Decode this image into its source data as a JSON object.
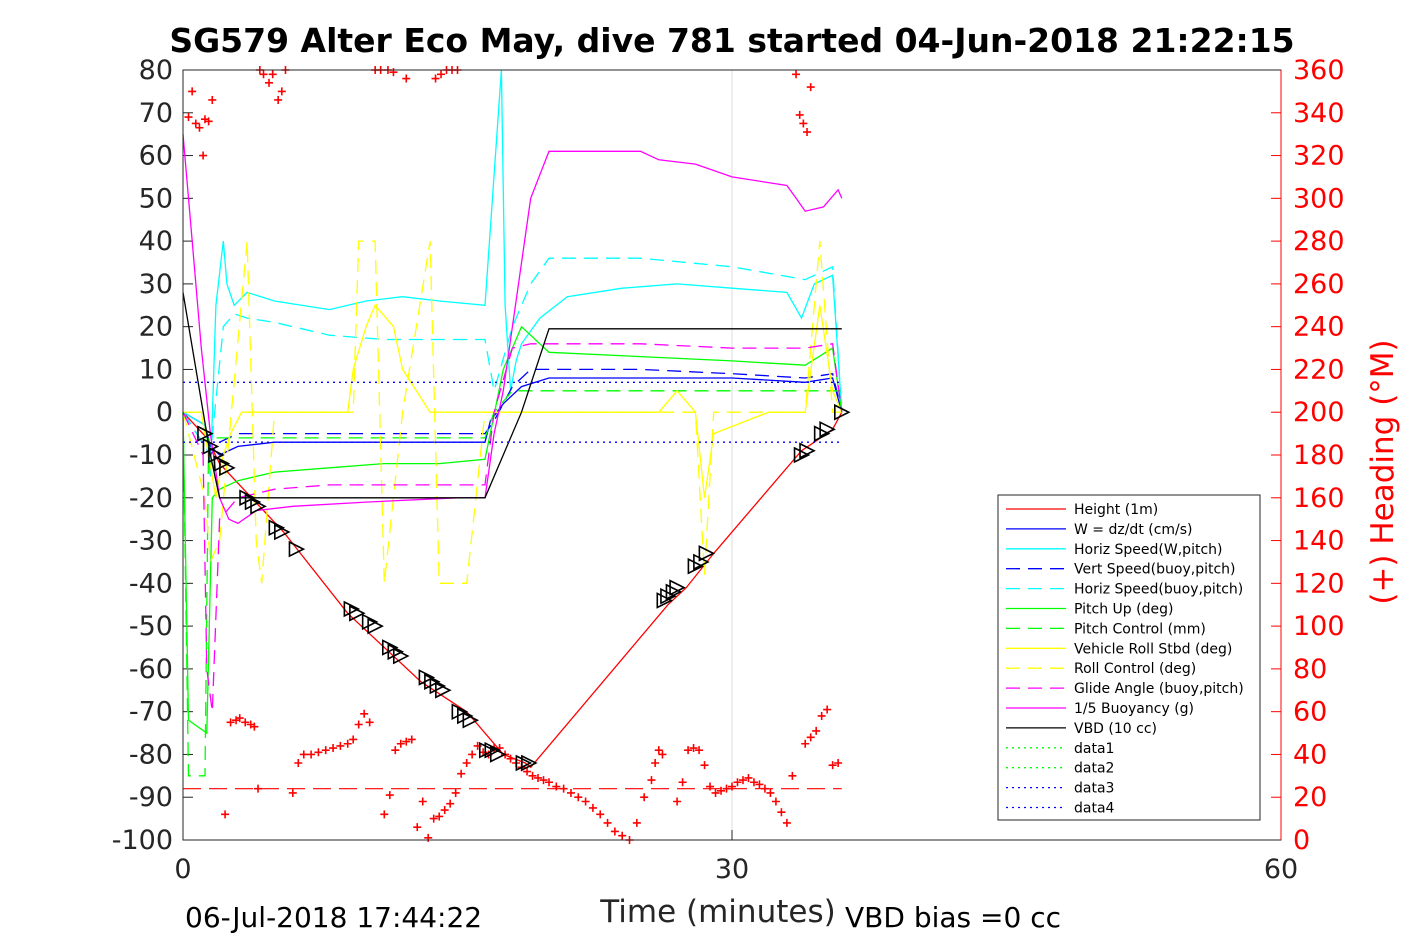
{
  "chart_data": {
    "type": "line",
    "title": "SG579 Alter Eco May, dive 781 started 04-Jun-2018 21:22:15",
    "xlabel": "Time (minutes)",
    "ylabel_right": "(+) Heading (°M)",
    "xlim": [
      0,
      60
    ],
    "ylim": [
      -100,
      80
    ],
    "ylim_right": [
      0,
      360
    ],
    "xticks": [
      "0",
      "30",
      "60"
    ],
    "yticks_left": [
      "80",
      "70",
      "60",
      "50",
      "40",
      "30",
      "20",
      "10",
      "0",
      "-10",
      "-20",
      "-30",
      "-40",
      "-50",
      "-60",
      "-70",
      "-80",
      "-90",
      "-100"
    ],
    "yticks_right": [
      "360",
      "340",
      "320",
      "300",
      "280",
      "260",
      "240",
      "220",
      "200",
      "180",
      "160",
      "140",
      "120",
      "100",
      "80",
      "60",
      "40",
      "20",
      "0"
    ],
    "grid": "x at 30 only",
    "legend_position": "lower-right",
    "footer_left": "06-Jul-2018 17:44:22",
    "footer_right": "VBD bias =0 cc",
    "colors": {
      "height": "#ff0000",
      "w": "#0000ff",
      "horiz_speed": "#00ffff",
      "pitch": "#00ff00",
      "roll": "#ffff00",
      "glide": "#ff00ff",
      "buoyancy": "#ff00ff",
      "vbd": "#000000",
      "data_green": "#00ff00",
      "data_blue": "#0000ff"
    },
    "series": [
      {
        "name": "Height (1m)",
        "color": "#ff0000",
        "dash": "",
        "x": [
          0,
          1.3,
          2.0,
          5.5,
          9,
          13,
          15.5,
          17.5,
          18.7,
          19.0,
          26.5,
          27.5,
          29,
          33.8,
          34.5,
          35.5,
          36
        ],
        "y": [
          0,
          -6,
          -12,
          -28,
          -47,
          -63,
          -70,
          -80,
          -82,
          -83,
          -45,
          -41,
          -33,
          -9,
          -7,
          -4,
          0
        ]
      },
      {
        "name": "W = dz/dt (cm/s)",
        "color": "#0000ff",
        "dash": "",
        "x": [
          0,
          1.2,
          1.5,
          2,
          3,
          5,
          8,
          11,
          14,
          16.5,
          16.8,
          17.5,
          18.5,
          20,
          25,
          30,
          34,
          35.5,
          36
        ],
        "y": [
          0,
          -3,
          -8,
          -10,
          -8,
          -7,
          -7,
          -7,
          -7,
          -7,
          -2,
          2,
          6,
          8,
          8,
          8,
          7,
          8,
          0
        ]
      },
      {
        "name": "Horiz Speed(W,pitch)",
        "color": "#00ffff",
        "dash": "",
        "x": [
          0,
          1.2,
          1.5,
          1.8,
          2.2,
          2.4,
          2.8,
          3.5,
          5,
          8,
          10,
          12,
          14,
          16.5,
          17.4,
          17.6,
          17.9,
          18.2,
          18.5,
          19.5,
          21,
          24,
          27,
          30,
          33,
          33.8,
          34.5,
          35.5,
          36
        ],
        "y": [
          0,
          -3,
          -15,
          25,
          40,
          30,
          25,
          28,
          26,
          24,
          26,
          27,
          26,
          25,
          95,
          25,
          5,
          12,
          16,
          22,
          27,
          29,
          30,
          29,
          28,
          22,
          30,
          32,
          0
        ]
      },
      {
        "name": "Vert Speed(buoy,pitch)",
        "color": "#0000ff",
        "dash": "14,8",
        "x": [
          0,
          1.5,
          2,
          3,
          5,
          8,
          11,
          14,
          16.5,
          17,
          18,
          19,
          20,
          25,
          30,
          34,
          35.5,
          36
        ],
        "y": [
          0,
          -10,
          -7,
          -5,
          -5,
          -5,
          -5,
          -5,
          -5,
          -2,
          6,
          10,
          10,
          10,
          9,
          8,
          9,
          0
        ]
      },
      {
        "name": "Horiz Speed(buoy,pitch)",
        "color": "#00ffff",
        "dash": "14,8",
        "x": [
          0,
          1.5,
          2.2,
          2.8,
          3.5,
          5,
          8,
          11,
          14,
          16.5,
          17,
          18,
          19,
          20,
          25,
          30,
          34,
          35.5,
          36
        ],
        "y": [
          0,
          -10,
          20,
          23,
          22,
          21,
          18,
          17,
          17,
          17,
          5,
          20,
          30,
          36,
          36,
          34,
          31,
          34,
          0
        ]
      },
      {
        "name": "Pitch Up (deg)",
        "color": "#00ff00",
        "dash": "",
        "x": [
          0,
          0.3,
          1.3,
          1.6,
          2,
          3,
          4,
          5,
          8,
          11,
          14,
          16.5,
          17.5,
          18.5,
          20,
          25,
          30,
          34,
          35.5,
          36
        ],
        "y": [
          0,
          -72,
          -75,
          -20,
          -18,
          -16,
          -15,
          -14,
          -13,
          -12,
          -12,
          -11,
          10,
          20,
          14,
          13,
          12,
          11,
          15,
          0
        ]
      },
      {
        "name": "Pitch Control (mm)",
        "color": "#00ff00",
        "dash": "14,8",
        "x": [
          0,
          0.3,
          1.2,
          1.4,
          2,
          5,
          10,
          16.5,
          17,
          18,
          19,
          25,
          30,
          36
        ],
        "y": [
          0,
          -85,
          -85,
          -6,
          -6,
          -6,
          -6,
          -6,
          0,
          5,
          5,
          5,
          5,
          5
        ]
      },
      {
        "name": "Vehicle Roll Stbd (deg)",
        "color": "#ffff00",
        "dash": "",
        "x": [
          0,
          1,
          1.8,
          2.2,
          2.6,
          3.2,
          3.8,
          4.3,
          6,
          8,
          9,
          9.3,
          10,
          10.5,
          11.5,
          12,
          13.5,
          14,
          16.5,
          17,
          18,
          19,
          20,
          23,
          26,
          27,
          28,
          28.5,
          29,
          32,
          34,
          34.8,
          35.5,
          36
        ],
        "y": [
          0,
          0,
          -20,
          -10,
          -5,
          0,
          0,
          0,
          0,
          0,
          0,
          10,
          20,
          25,
          20,
          10,
          0,
          0,
          0,
          0,
          0,
          0,
          0,
          0,
          0,
          5,
          0,
          -20,
          -5,
          0,
          0,
          25,
          5,
          0
        ]
      },
      {
        "name": "Roll Control (deg)",
        "color": "#ffff00",
        "dash": "14,8",
        "x": [
          0,
          1.2,
          1.5,
          2,
          3.5,
          4,
          4.3,
          5,
          6,
          8,
          9.3,
          9.6,
          10.5,
          11,
          12,
          13.5,
          14,
          15.5,
          16.5,
          17,
          18,
          23,
          27,
          28,
          28.5,
          29,
          30,
          34,
          34.8,
          35.5,
          36
        ],
        "y": [
          0,
          -20,
          -35,
          -30,
          40,
          -30,
          -40,
          0,
          0,
          0,
          0,
          40,
          40,
          -40,
          0,
          40,
          -40,
          -40,
          0,
          0,
          0,
          0,
          0,
          0,
          -38,
          0,
          0,
          0,
          40,
          0,
          0
        ]
      },
      {
        "name": "Glide Angle (buoy,pitch)",
        "color": "#ff00ff",
        "dash": "14,8",
        "x": [
          0,
          1.1,
          1.3,
          1.6,
          2,
          3,
          5,
          8,
          11,
          14,
          16.5,
          17,
          18,
          19,
          20,
          25,
          30,
          34,
          35.5,
          36
        ],
        "y": [
          0,
          -10,
          -60,
          -70,
          -25,
          -20,
          -18,
          -17,
          -17,
          -17,
          -17,
          0,
          15,
          16,
          16,
          16,
          15,
          15,
          16,
          0
        ]
      },
      {
        "name": "1/5 Buoyancy (g)",
        "color": "#ff00ff",
        "dash": "",
        "x": [
          0,
          0.5,
          1,
          1.5,
          2,
          2.5,
          3,
          4,
          6,
          10,
          15,
          16.5,
          17,
          17.5,
          18,
          19,
          20,
          25,
          26,
          28,
          30,
          33,
          33.5,
          34,
          35,
          35.8,
          36
        ],
        "y": [
          65,
          40,
          15,
          -5,
          -20,
          -25,
          -26,
          -23,
          -22,
          -21,
          -20,
          -20,
          -5,
          5,
          20,
          50,
          61,
          61,
          59,
          58,
          55,
          53,
          50,
          47,
          48,
          52,
          50
        ]
      },
      {
        "name": "VBD (10 cc)",
        "color": "#000000",
        "dash": "",
        "x": [
          0,
          1.5,
          2.0,
          16.5,
          18.5,
          20,
          30,
          36
        ],
        "y": [
          28,
          -10,
          -20,
          -20,
          0,
          19.5,
          19.5,
          19.5
        ]
      },
      {
        "name": "data1",
        "color": "#00ff00",
        "dash": "2,4",
        "x": [],
        "y": []
      },
      {
        "name": "data2",
        "color": "#00ff00",
        "dash": "2,4",
        "x": [],
        "y": []
      },
      {
        "name": "data3",
        "color": "#0000ff",
        "dash": "2,4",
        "x": [
          0,
          36
        ],
        "y": [
          7,
          7
        ]
      },
      {
        "name": "data4",
        "color": "#0000ff",
        "dash": "2,4",
        "x": [
          0,
          36
        ],
        "y": [
          -7,
          -7
        ]
      }
    ],
    "reference_lines": [
      {
        "y": -88,
        "color": "#ff0000",
        "dash": "18,8",
        "x": [
          0,
          36
        ]
      }
    ],
    "heading_points": {
      "color": "#ff0000",
      "marker": "+",
      "x": [
        0.3,
        0.5,
        0.7,
        0.9,
        1.1,
        1.2,
        1.4,
        1.6,
        4.2,
        4.4,
        4.7,
        4.9,
        5.2,
        5.4,
        5.6,
        10.5,
        10.8,
        11.2,
        11.5,
        12.2,
        13.8,
        14.1,
        14.4,
        14.7,
        15.0,
        33.5,
        33.7,
        33.9,
        34.1,
        34.3,
        2.3,
        2.6,
        2.9,
        3.1,
        3.4,
        3.7,
        3.9,
        4.1,
        6.0,
        6.3,
        6.6,
        7.0,
        7.4,
        7.8,
        8.2,
        8.6,
        9.0,
        9.3,
        9.6,
        9.9,
        10.2,
        11.0,
        11.3,
        11.6,
        11.9,
        12.2,
        12.5,
        12.8,
        13.1,
        13.4,
        13.7,
        14.0,
        14.3,
        14.6,
        14.9,
        15.2,
        15.5,
        15.8,
        16.1,
        16.4,
        16.7,
        17.0,
        17.3,
        17.6,
        17.9,
        18.2,
        18.5,
        18.8,
        19.1,
        19.4,
        19.7,
        20.0,
        20.4,
        20.8,
        21.2,
        21.6,
        22.0,
        22.4,
        22.8,
        23.2,
        23.6,
        24.0,
        24.4,
        24.8,
        25.2,
        25.6,
        25.8,
        26.0,
        26.2,
        27.0,
        27.3,
        27.6,
        27.9,
        28.2,
        28.5,
        28.8,
        29.1,
        29.4,
        29.7,
        30.0,
        30.3,
        30.6,
        30.9,
        31.2,
        31.5,
        31.8,
        32.1,
        32.4,
        32.7,
        33.0,
        33.3,
        34.0,
        34.3,
        34.6,
        34.9,
        35.2,
        35.5,
        35.8
      ],
      "y": [
        338,
        350,
        335,
        333,
        320,
        337,
        336,
        346,
        360,
        358,
        354,
        358,
        346,
        350,
        360,
        360,
        360,
        360,
        359,
        356,
        356,
        358,
        360,
        360,
        360,
        358,
        339,
        335,
        331,
        352,
        12,
        55,
        56,
        57,
        55,
        54,
        53,
        24,
        22,
        36,
        40,
        40,
        41,
        42,
        43,
        44,
        45,
        47,
        54,
        59,
        55,
        12,
        21,
        42,
        45,
        46,
        47,
        6,
        18,
        1,
        10,
        11,
        14,
        17,
        22,
        31,
        36,
        40,
        44,
        41,
        40,
        43,
        43,
        40,
        38,
        36,
        34,
        32,
        30,
        29,
        28,
        27,
        25,
        24,
        22,
        20,
        18,
        15,
        12,
        8,
        4,
        2,
        0,
        8,
        20,
        28,
        36,
        42,
        40,
        18,
        27,
        42,
        43,
        42,
        35,
        25,
        22,
        23,
        24,
        25,
        27,
        28,
        29,
        27,
        26,
        24,
        22,
        18,
        13,
        8,
        30,
        45,
        48,
        51,
        58,
        61,
        35,
        36
      ]
    },
    "triangle_markers": {
      "color": "#000000",
      "x": [
        1.2,
        1.5,
        1.8,
        2.1,
        2.4,
        3.5,
        3.8,
        4.1,
        5.1,
        5.4,
        6.2,
        9.2,
        9.5,
        10.2,
        10.5,
        11.3,
        11.6,
        11.9,
        13.3,
        13.6,
        13.9,
        14.2,
        15.1,
        15.4,
        15.7,
        16.6,
        16.9,
        17.2,
        18.6,
        18.9,
        26.3,
        26.5,
        26.8,
        27.0,
        28.0,
        28.3,
        28.6,
        33.8,
        34.1,
        34.9,
        35.2,
        36.0
      ],
      "y": [
        -5,
        -8,
        -10,
        -12,
        -13,
        -20,
        -21,
        -22,
        -27,
        -28,
        -32,
        -46,
        -47,
        -49,
        -50,
        -55,
        -56,
        -57,
        -62,
        -63,
        -64,
        -65,
        -70,
        -71,
        -72,
        -79,
        -79,
        -80,
        -82,
        -82,
        -44,
        -43,
        -42,
        -41,
        -36,
        -35,
        -33,
        -10,
        -9,
        -5,
        -4,
        0
      ]
    }
  },
  "legend": {
    "items": [
      {
        "label": "Height (1m)",
        "color": "#ff0000",
        "dash": ""
      },
      {
        "label": "W = dz/dt (cm/s)",
        "color": "#0000ff",
        "dash": ""
      },
      {
        "label": "Horiz Speed(W,pitch)",
        "color": "#00ffff",
        "dash": ""
      },
      {
        "label": "Vert Speed(buoy,pitch)",
        "color": "#0000ff",
        "dash": "14,8"
      },
      {
        "label": "Horiz Speed(buoy,pitch)",
        "color": "#00ffff",
        "dash": "14,8"
      },
      {
        "label": "Pitch Up (deg)",
        "color": "#00ff00",
        "dash": ""
      },
      {
        "label": "Pitch Control (mm)",
        "color": "#00ff00",
        "dash": "14,8"
      },
      {
        "label": "Vehicle Roll Stbd (deg)",
        "color": "#ffff00",
        "dash": ""
      },
      {
        "label": "Roll Control (deg)",
        "color": "#ffff00",
        "dash": "14,8"
      },
      {
        "label": "Glide Angle (buoy,pitch)",
        "color": "#ff00ff",
        "dash": "14,8"
      },
      {
        "label": "1/5 Buoyancy (g)",
        "color": "#ff00ff",
        "dash": ""
      },
      {
        "label": "VBD (10 cc)",
        "color": "#000000",
        "dash": ""
      },
      {
        "label": "data1",
        "color": "#00ff00",
        "dash": "2,4"
      },
      {
        "label": "data2",
        "color": "#00ff00",
        "dash": "2,4"
      },
      {
        "label": "data3",
        "color": "#0000ff",
        "dash": "2,4"
      },
      {
        "label": "data4",
        "color": "#0000ff",
        "dash": "2,4"
      }
    ]
  }
}
